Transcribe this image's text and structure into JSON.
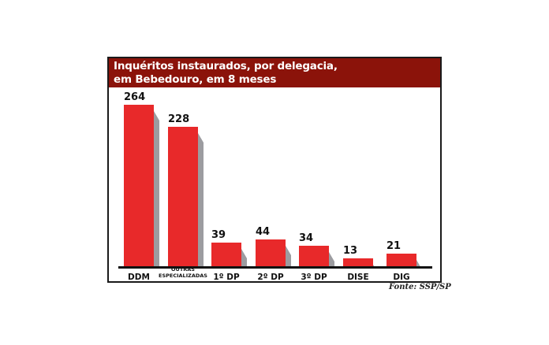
{
  "chart_data": {
    "type": "bar",
    "title": "Inquéritos instaurados, por delegacia, em Bebedouro, em 8 meses",
    "title_lines": [
      "Inquéritos instaurados, por delegacia,",
      "em Bebedouro, em 8 meses"
    ],
    "categories": [
      "DDM",
      "OUTRAS ESPECIALIZADAS",
      "1º DP",
      "2º DP",
      "3º DP",
      "DISE",
      "DIG"
    ],
    "values": [
      264,
      228,
      39,
      44,
      34,
      13,
      21
    ],
    "xlabel": "",
    "ylabel": "",
    "ylim": [
      0,
      264
    ],
    "grid": false,
    "legend": null,
    "source": "Fonte: SSP/SP"
  },
  "colors": {
    "title_bg": "#8b130a",
    "bar": "#e8292a",
    "bar_side": "#9c9ca0",
    "axis": "#111111"
  }
}
